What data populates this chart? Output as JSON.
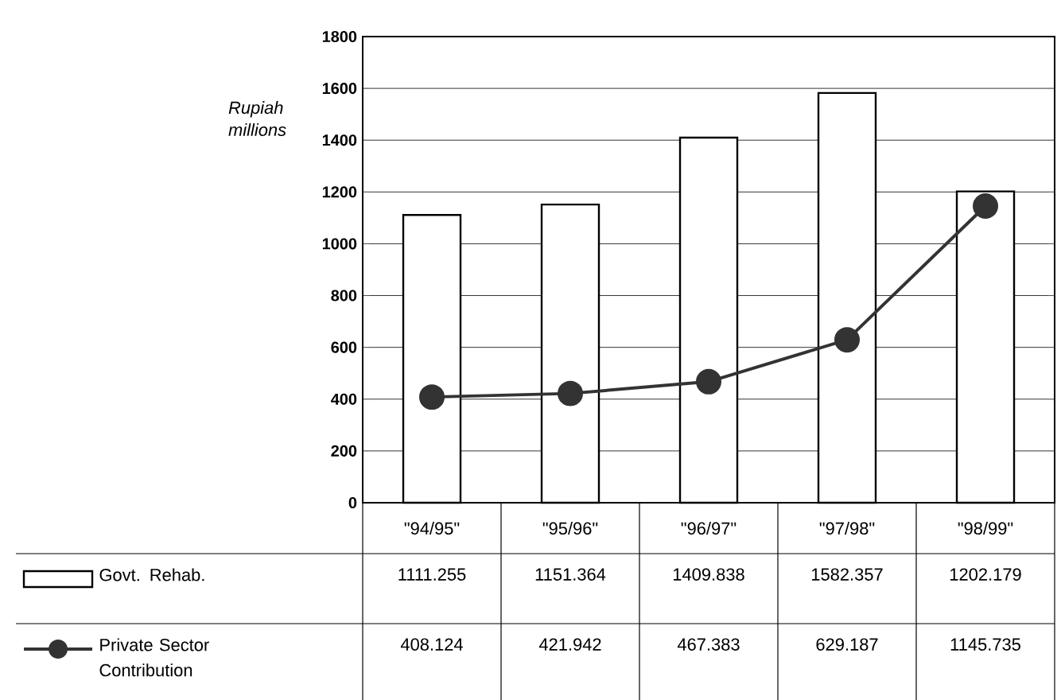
{
  "chart_data": {
    "type": "bar",
    "ylabel": "Rupiah millions",
    "categories": [
      "\"94/95\"",
      "\"95/96\"",
      "\"96/97\"",
      "\"97/98\"",
      "\"98/99\""
    ],
    "series": [
      {
        "name": "Govt. Rehab.",
        "color": "#000000",
        "values": [
          1111.255,
          1151.364,
          1409.838,
          1582.357,
          1202.179
        ]
      },
      {
        "name": "Private Sector Contribution",
        "type": "line",
        "color": "#333333",
        "marker": "circle",
        "line_style": "solid",
        "values": [
          408.124,
          421.942,
          467.383,
          629.187,
          1145.735
        ]
      }
    ],
    "ylim": [
      0,
      1800
    ],
    "yticks": [
      0,
      200,
      400,
      600,
      800,
      1000,
      1200,
      1400,
      1600,
      1800
    ],
    "grid": "y",
    "legend": "bottom",
    "data_labels": true
  }
}
